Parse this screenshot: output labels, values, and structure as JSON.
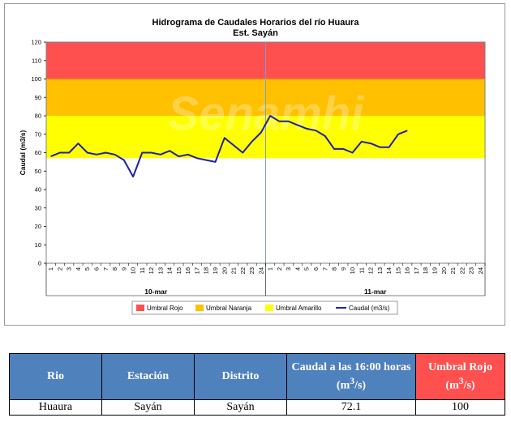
{
  "chart_data": {
    "type": "line",
    "title": "Hidrograma de Caudales Horarios del río Huaura",
    "subtitle": "Est. Sayán",
    "ylabel": "Caudal  (m3/s)",
    "ylim": [
      0,
      120
    ],
    "yticks": [
      0,
      10,
      20,
      30,
      40,
      50,
      60,
      70,
      80,
      90,
      100,
      110,
      120
    ],
    "x_tick_labels": [
      "1",
      "2",
      "3",
      "4",
      "5",
      "6",
      "7",
      "8",
      "9",
      "10",
      "11",
      "12",
      "13",
      "14",
      "15",
      "16",
      "17",
      "18",
      "19",
      "20",
      "21",
      "22",
      "23",
      "24",
      "1",
      "2",
      "3",
      "4",
      "5",
      "6",
      "7",
      "8",
      "9",
      "10",
      "11",
      "12",
      "13",
      "14",
      "15",
      "16",
      "17",
      "18",
      "19",
      "20",
      "21",
      "22",
      "23",
      "24"
    ],
    "day_labels": [
      "10-mar",
      "11-mar"
    ],
    "thresholds": [
      {
        "name": "Umbral Rojo",
        "from": 100,
        "to": 120,
        "color": "#ff5050"
      },
      {
        "name": "Umbral Naranja",
        "from": 80,
        "to": 100,
        "color": "#ffc000"
      },
      {
        "name": "Umbral Amarillo",
        "from": 57,
        "to": 80,
        "color": "#ffff00"
      }
    ],
    "series": [
      {
        "name": "Caudal (m3/s)",
        "color": "#1f1fa8",
        "values": [
          58,
          60,
          60,
          65,
          60,
          59,
          60,
          59,
          56,
          47,
          60,
          60,
          59,
          61,
          58,
          59,
          57,
          56,
          55,
          68,
          64,
          60,
          66,
          71,
          80,
          77,
          77,
          75,
          73,
          72,
          69,
          62,
          62,
          60,
          66,
          65,
          63,
          63,
          70,
          72
        ]
      }
    ],
    "watermark": "Senamhi",
    "legend": [
      "Umbral Rojo",
      "Umbral Naranja",
      "Umbral Amarillo",
      "Caudal (m3/s)"
    ],
    "legend_position": "bottom",
    "grid": false
  },
  "table": {
    "headers": [
      "Rio",
      "Estación",
      "Distrito",
      "Caudal a las 16:00 horas",
      "(m",
      "3",
      "/s)",
      "Umbral Rojo",
      "(m",
      "3",
      "/s)"
    ],
    "row": [
      "Huaura",
      "Sayán",
      "Sayán",
      "72.1",
      "100"
    ]
  }
}
